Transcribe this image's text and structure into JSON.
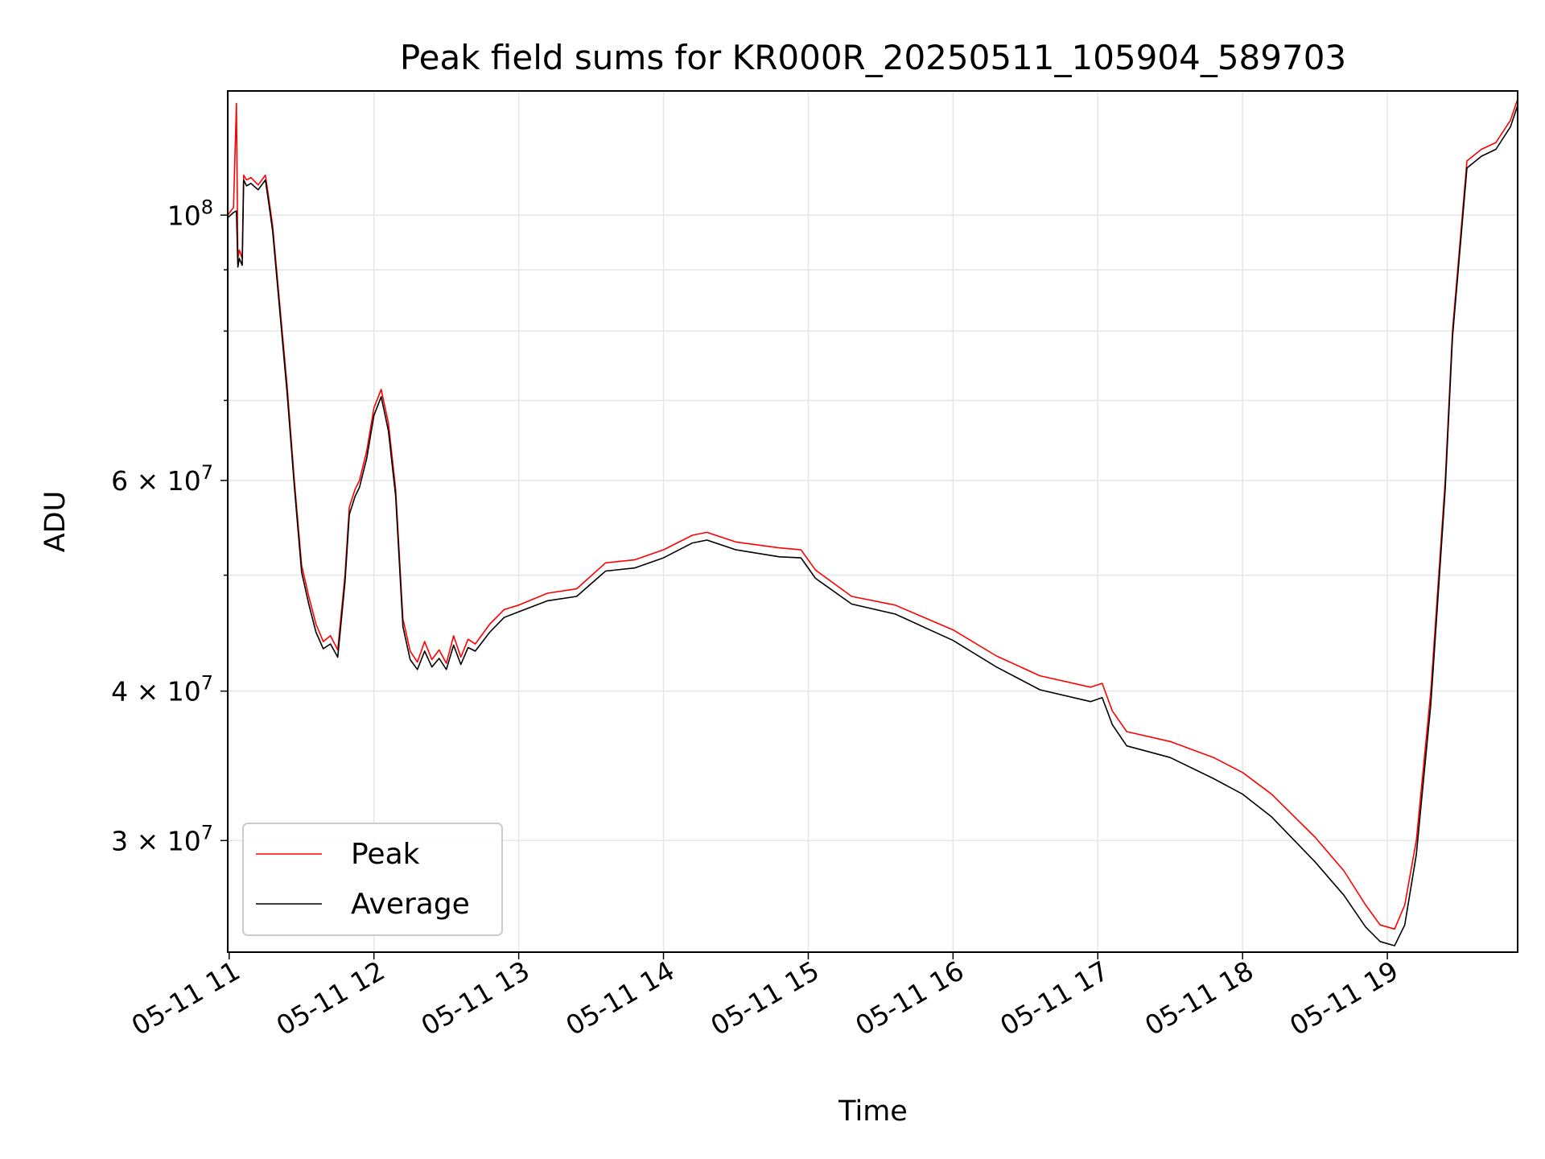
{
  "chart_data": {
    "type": "line",
    "title": "Peak field sums for KR000R_20250511_105904_589703",
    "xlabel": "Time",
    "ylabel": "ADU",
    "x_unit": "hour of 2025-05-11",
    "xlim": [
      10.99,
      19.9
    ],
    "ylim": [
      24200000,
      127000000
    ],
    "yscale": "log",
    "grid": true,
    "legend": "lower-left",
    "x_ticks": [
      {
        "value": 11,
        "label": "05-11 11"
      },
      {
        "value": 12,
        "label": "05-11 12"
      },
      {
        "value": 13,
        "label": "05-11 13"
      },
      {
        "value": 14,
        "label": "05-11 14"
      },
      {
        "value": 15,
        "label": "05-11 15"
      },
      {
        "value": 16,
        "label": "05-11 16"
      },
      {
        "value": 17,
        "label": "05-11 17"
      },
      {
        "value": 18,
        "label": "05-11 18"
      },
      {
        "value": 19,
        "label": "05-11 19"
      }
    ],
    "y_ticks": [
      {
        "value": 30000000,
        "mantissa": "3",
        "exponent": "7"
      },
      {
        "value": 40000000,
        "mantissa": "4",
        "exponent": "7"
      },
      {
        "value": 60000000,
        "mantissa": "6",
        "exponent": "7"
      },
      {
        "value": 100000000,
        "mantissa": "10",
        "exponent": "8"
      }
    ],
    "y_minor_ticks": [
      50000000,
      70000000,
      80000000,
      90000000
    ],
    "series": [
      {
        "name": "Peak",
        "color": "#ff0000",
        "x": [
          10.99,
          11.03,
          11.05,
          11.06,
          11.07,
          11.09,
          11.1,
          11.12,
          11.15,
          11.2,
          11.25,
          11.27,
          11.3,
          11.35,
          11.4,
          11.45,
          11.5,
          11.55,
          11.6,
          11.65,
          11.7,
          11.75,
          11.8,
          11.83,
          11.87,
          11.9,
          11.95,
          12.0,
          12.05,
          12.1,
          12.15,
          12.2,
          12.25,
          12.3,
          12.35,
          12.4,
          12.45,
          12.5,
          12.55,
          12.6,
          12.65,
          12.7,
          12.8,
          12.9,
          13.0,
          13.2,
          13.4,
          13.6,
          13.8,
          14.0,
          14.2,
          14.3,
          14.5,
          14.8,
          14.95,
          15.05,
          15.3,
          15.6,
          16.0,
          16.3,
          16.6,
          16.95,
          17.03,
          17.1,
          17.2,
          17.5,
          17.8,
          18.0,
          18.2,
          18.5,
          18.7,
          18.85,
          18.95,
          19.05,
          19.12,
          19.2,
          19.3,
          19.4,
          19.45,
          19.55,
          19.65,
          19.75,
          19.85,
          19.9
        ],
        "values": [
          100000000,
          101500000,
          124000000,
          92000000,
          93500000,
          92000000,
          108000000,
          107000000,
          107500000,
          106000000,
          108000000,
          104000000,
          98000000,
          84000000,
          72000000,
          60000000,
          51000000,
          48000000,
          45500000,
          44000000,
          44500000,
          43300000,
          50000000,
          57000000,
          59000000,
          60000000,
          63500000,
          69000000,
          71500000,
          67000000,
          59000000,
          46000000,
          43200000,
          42300000,
          44000000,
          42500000,
          43300000,
          42200000,
          44500000,
          42700000,
          44200000,
          43800000,
          45500000,
          46800000,
          47200000,
          48300000,
          48700000,
          51200000,
          51500000,
          52500000,
          54000000,
          54300000,
          53300000,
          52700000,
          52500000,
          50500000,
          48000000,
          47200000,
          45000000,
          42800000,
          41200000,
          40300000,
          40600000,
          38500000,
          37000000,
          36300000,
          35200000,
          34200000,
          32800000,
          30200000,
          28300000,
          26500000,
          25500000,
          25300000,
          26500000,
          30000000,
          40000000,
          60000000,
          80000000,
          111000000,
          113500000,
          115000000,
          120000000,
          125000000
        ]
      },
      {
        "name": "Average",
        "color": "#000000",
        "x": [
          10.99,
          11.03,
          11.05,
          11.06,
          11.07,
          11.09,
          11.1,
          11.12,
          11.15,
          11.2,
          11.25,
          11.27,
          11.3,
          11.35,
          11.4,
          11.45,
          11.5,
          11.55,
          11.6,
          11.65,
          11.7,
          11.75,
          11.8,
          11.83,
          11.87,
          11.9,
          11.95,
          12.0,
          12.05,
          12.1,
          12.15,
          12.2,
          12.25,
          12.3,
          12.35,
          12.4,
          12.45,
          12.5,
          12.55,
          12.6,
          12.65,
          12.7,
          12.8,
          12.9,
          13.0,
          13.2,
          13.4,
          13.6,
          13.8,
          14.0,
          14.2,
          14.3,
          14.5,
          14.8,
          14.95,
          15.05,
          15.3,
          15.6,
          16.0,
          16.3,
          16.6,
          16.95,
          17.03,
          17.1,
          17.2,
          17.5,
          17.8,
          18.0,
          18.2,
          18.5,
          18.7,
          18.85,
          18.95,
          19.05,
          19.12,
          19.2,
          19.3,
          19.4,
          19.45,
          19.55,
          19.65,
          19.75,
          19.85,
          19.9
        ],
        "values": [
          99500000,
          100500000,
          100800000,
          90500000,
          92000000,
          90800000,
          107000000,
          105800000,
          106300000,
          105000000,
          107000000,
          103000000,
          97000000,
          83000000,
          71000000,
          59300000,
          50300000,
          47300000,
          44800000,
          43400000,
          43800000,
          42700000,
          49300000,
          56200000,
          58200000,
          59200000,
          62600000,
          68000000,
          70500000,
          66000000,
          58200000,
          45300000,
          42500000,
          41700000,
          43200000,
          41900000,
          42600000,
          41700000,
          43700000,
          42100000,
          43500000,
          43200000,
          44800000,
          46100000,
          46600000,
          47600000,
          48000000,
          50400000,
          50700000,
          51700000,
          53200000,
          53500000,
          52500000,
          51800000,
          51700000,
          49700000,
          47300000,
          46400000,
          44100000,
          41900000,
          40100000,
          39200000,
          39500000,
          37500000,
          36000000,
          35200000,
          33800000,
          32800000,
          31400000,
          28800000,
          27000000,
          25400000,
          24700000,
          24500000,
          25500000,
          29200000,
          39000000,
          59000000,
          79000000,
          109500000,
          112000000,
          113500000,
          118500000,
          123500000
        ]
      }
    ]
  }
}
